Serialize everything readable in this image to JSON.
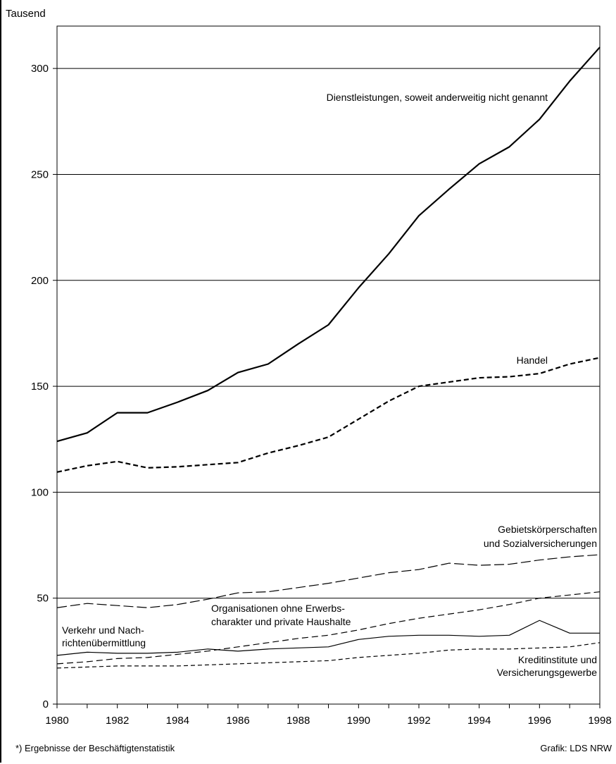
{
  "chart_data": {
    "type": "line",
    "ylabel": "Tausend",
    "xlabel": "",
    "ylim": [
      0,
      320
    ],
    "xlim": [
      1980,
      1998
    ],
    "yticks": [
      0,
      50,
      100,
      150,
      200,
      250,
      300
    ],
    "xticks": [
      1980,
      1982,
      1984,
      1986,
      1988,
      1990,
      1992,
      1994,
      1996,
      1998
    ],
    "grid": "horizontal",
    "x": [
      1980,
      1981,
      1982,
      1983,
      1984,
      1985,
      1986,
      1987,
      1988,
      1989,
      1990,
      1991,
      1992,
      1993,
      1994,
      1995,
      1996,
      1997,
      1998
    ],
    "series": [
      {
        "name": "Dienstleistungen, soweit anderweitig nicht genannt",
        "style": "solid-bold",
        "values": [
          124,
          128,
          137.5,
          137.5,
          142.5,
          148,
          156.5,
          160.5,
          170,
          179,
          196.5,
          212.5,
          230.5,
          243,
          255,
          263,
          276,
          294,
          310
        ]
      },
      {
        "name": "Handel",
        "style": "dashed-bold",
        "values": [
          109.5,
          112.5,
          114.5,
          111.5,
          112,
          113,
          114,
          118.5,
          122,
          126,
          134.5,
          143,
          150,
          152,
          154,
          154.5,
          156,
          160.5,
          163.5
        ]
      },
      {
        "name": "Gebietskörperschaften und Sozialversicherungen",
        "label_lines": [
          "Gebietskörperschaften",
          "und Sozialversicherungen"
        ],
        "style": "dashed-long",
        "values": [
          45.5,
          47.5,
          46.5,
          45.5,
          47,
          49.5,
          52.5,
          53,
          55,
          57,
          59.5,
          62,
          63.5,
          66.5,
          65.5,
          66,
          68,
          69.5,
          70.5
        ]
      },
      {
        "name": "Organisationen ohne Erwerbscharakter und private Haushalte",
        "label_lines": [
          "Organisationen ohne Erwerbs-",
          "charakter und private Haushalte"
        ],
        "style": "dashed-medium",
        "values": [
          19,
          20,
          21.5,
          22,
          23.5,
          25,
          27,
          29,
          31,
          32.5,
          35,
          38,
          40.5,
          42.5,
          44.5,
          47,
          50,
          51.5,
          53
        ]
      },
      {
        "name": "Verkehr und Nachrichtenübermittlung",
        "label_lines": [
          "Verkehr und Nach-",
          "richtenübermittlung"
        ],
        "style": "solid-thin",
        "values": [
          23,
          24.5,
          24,
          24,
          24.5,
          26,
          25,
          26,
          26.5,
          27,
          30.5,
          32,
          32.5,
          32.5,
          32,
          32.5,
          39.5,
          33.5,
          33.5
        ]
      },
      {
        "name": "Kreditinstitute und Versicherungsgewerbe",
        "label_lines": [
          "Kreditinstitute und",
          "Versicherungsgewerbe"
        ],
        "style": "dashed-short",
        "values": [
          17,
          17.5,
          18,
          18,
          18,
          18.5,
          19,
          19.5,
          20,
          20.5,
          22,
          23,
          24,
          25.5,
          26,
          26,
          26.5,
          27,
          29
        ]
      }
    ]
  },
  "footer": {
    "left": "*) Ergebnisse der Beschäftigtenstatistik",
    "right": "Grafik: LDS NRW"
  }
}
